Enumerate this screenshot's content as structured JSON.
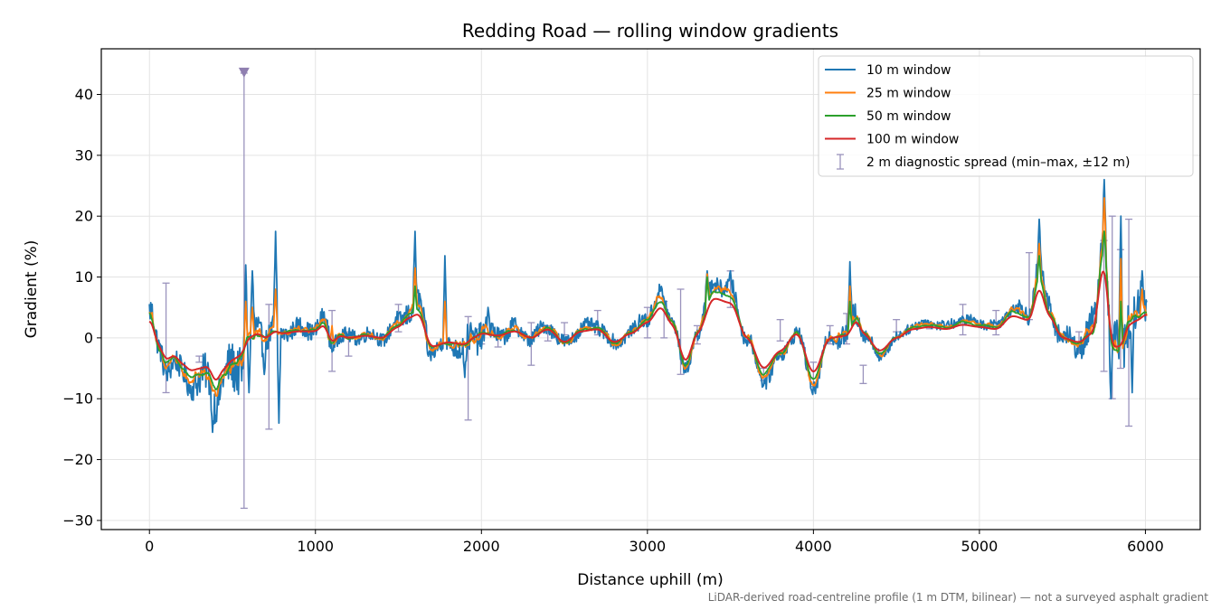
{
  "chart_data": {
    "type": "line",
    "title": "Redding Road — rolling window gradients",
    "xlabel": "Distance uphill (m)",
    "ylabel": "Gradient (%)",
    "footnote": "LiDAR-derived road-centreline profile (1 m DTM, bilinear) — not a surveyed asphalt gradient",
    "xlim": [
      -290,
      6330
    ],
    "ylim": [
      -31.5,
      47.5
    ],
    "x_ticks": [
      0,
      1000,
      2000,
      3000,
      4000,
      5000,
      6000
    ],
    "x_tick_labels": [
      "0",
      "1000",
      "2000",
      "3000",
      "4000",
      "5000",
      "6000"
    ],
    "y_ticks": [
      -30,
      -20,
      -10,
      0,
      10,
      20,
      30,
      40
    ],
    "y_tick_labels": [
      "−30",
      "−20",
      "−10",
      "0",
      "10",
      "20",
      "30",
      "40"
    ],
    "grid": true,
    "legend_position": "top-right",
    "series": [
      {
        "name": "10 m window",
        "color": "#1f77b4",
        "window": 10,
        "scale": 1.0,
        "x": [
          0,
          60,
          100,
          150,
          200,
          250,
          300,
          350,
          400,
          450,
          500,
          550,
          600,
          650,
          700,
          760,
          800,
          900,
          1000,
          1050,
          1100,
          1150,
          1200,
          1300,
          1400,
          1500,
          1560,
          1620,
          1700,
          1800,
          1900,
          1950,
          2000,
          2100,
          2200,
          2300,
          2400,
          2500,
          2600,
          2700,
          2800,
          2900,
          3000,
          3080,
          3150,
          3230,
          3300,
          3400,
          3500,
          3600,
          3700,
          3800,
          3900,
          4000,
          4100,
          4200,
          4260,
          4300,
          4400,
          4500,
          4600,
          4700,
          4800,
          4900,
          5000,
          5100,
          5200,
          5300,
          5360,
          5420,
          5500,
          5600,
          5680,
          5750,
          5800,
          5850,
          5900,
          5950,
          6010
        ],
        "values": [
          4.5,
          -2,
          -5,
          -4,
          -6,
          -7.5,
          -7,
          -6.5,
          -10,
          -7,
          -5,
          -4,
          0,
          1,
          0,
          1.5,
          1,
          1.5,
          1.5,
          3,
          -1,
          0.5,
          0,
          0.5,
          0,
          2.5,
          4.5,
          5.5,
          -2,
          -1,
          -1.5,
          0,
          1,
          0.5,
          1.5,
          0,
          2,
          -1,
          1.5,
          2,
          -1,
          1,
          3.5,
          7,
          3,
          -5.5,
          1,
          9,
          8,
          0,
          -7,
          -3,
          1,
          -8,
          0,
          0.5,
          4,
          1,
          -3,
          0,
          2,
          2.5,
          2,
          3,
          2.5,
          2,
          5,
          4,
          11.5,
          5,
          0,
          -1,
          1,
          17,
          -2,
          -2,
          3,
          4,
          5.5
        ],
        "noise": [
          2.5,
          2,
          2,
          2,
          2,
          2,
          3,
          3,
          3,
          3,
          4,
          4,
          3.5,
          3.5,
          2,
          2,
          1.5,
          1.5,
          1.5,
          1.5,
          1.5,
          1.2,
          1.2,
          1.2,
          1.2,
          1.5,
          2,
          2,
          1.5,
          1.2,
          2.5,
          2.5,
          2.5,
          1.5,
          1.5,
          1.2,
          1.2,
          1.2,
          1.2,
          1.2,
          1.2,
          1,
          1.5,
          1.5,
          1.2,
          1.2,
          1.2,
          1.5,
          1.5,
          1.2,
          1.2,
          1.2,
          1.2,
          1.2,
          1.2,
          2,
          2,
          1.2,
          1,
          0.8,
          0.8,
          0.8,
          0.8,
          0.8,
          0.8,
          0.8,
          1,
          1.5,
          2,
          2,
          1.5,
          2,
          3,
          3,
          4,
          4,
          4,
          3,
          3
        ],
        "spikes": [
          [
            380,
            -15.5
          ],
          [
            580,
            12
          ],
          [
            600,
            -9
          ],
          [
            620,
            11
          ],
          [
            690,
            -6
          ],
          [
            760,
            17.5
          ],
          [
            780,
            -14
          ],
          [
            1600,
            17.5
          ],
          [
            1680,
            -3
          ],
          [
            1780,
            13.5
          ],
          [
            1900,
            -6.5
          ],
          [
            2040,
            5
          ],
          [
            3360,
            11
          ],
          [
            3500,
            11
          ],
          [
            4220,
            12.5
          ],
          [
            5360,
            19.5
          ],
          [
            5750,
            26
          ],
          [
            5790,
            -10
          ],
          [
            5850,
            20
          ],
          [
            5920,
            -9
          ],
          [
            5980,
            11
          ]
        ]
      },
      {
        "name": "25 m window",
        "color": "#ff7f0e",
        "window": 25,
        "scale": 0.92,
        "x": [
          0,
          60,
          100,
          150,
          200,
          250,
          300,
          350,
          400,
          450,
          500,
          550,
          600,
          650,
          700,
          760,
          800,
          900,
          1000,
          1050,
          1100,
          1150,
          1200,
          1300,
          1400,
          1500,
          1560,
          1620,
          1700,
          1800,
          1900,
          1950,
          2000,
          2100,
          2200,
          2300,
          2400,
          2500,
          2600,
          2700,
          2800,
          2900,
          3000,
          3080,
          3150,
          3230,
          3300,
          3400,
          3500,
          3600,
          3700,
          3800,
          3900,
          4000,
          4100,
          4200,
          4260,
          4300,
          4400,
          4500,
          4600,
          4700,
          4800,
          4900,
          5000,
          5100,
          5200,
          5300,
          5360,
          5420,
          5500,
          5600,
          5680,
          5750,
          5800,
          5850,
          5900,
          5950,
          6010
        ],
        "values": [
          4.5,
          -2,
          -5,
          -4,
          -6,
          -7.5,
          -7,
          -6.5,
          -10,
          -7,
          -5,
          -4,
          0,
          1,
          0,
          1.5,
          1,
          1.5,
          1.5,
          3,
          -1,
          0.5,
          0,
          0.5,
          0,
          2.5,
          4.5,
          5.5,
          -2,
          -1,
          -1.5,
          0,
          1,
          0.5,
          1.5,
          0,
          2,
          -1,
          1.5,
          2,
          -1,
          1,
          3.5,
          7,
          3,
          -5.5,
          1,
          9,
          8,
          0,
          -7,
          -3,
          1,
          -8,
          0,
          0.5,
          4,
          1,
          -3,
          0,
          2,
          2.5,
          2,
          3,
          2.5,
          2,
          5,
          4,
          11.5,
          5,
          0,
          -1,
          1,
          17,
          -2,
          -2,
          3,
          4,
          5.5
        ],
        "noise": [
          1.2,
          1,
          1,
          1,
          1,
          1,
          1.5,
          1.5,
          1.5,
          1.5,
          2,
          2,
          1.8,
          1.8,
          1,
          1,
          0.8,
          0.8,
          0.8,
          0.8,
          0.8,
          0.6,
          0.6,
          0.6,
          0.6,
          0.8,
          1,
          1,
          0.8,
          0.6,
          1.2,
          1.2,
          1.2,
          0.8,
          0.8,
          0.6,
          0.6,
          0.6,
          0.6,
          0.6,
          0.6,
          0.5,
          0.8,
          0.8,
          0.6,
          0.6,
          0.6,
          0.8,
          0.8,
          0.6,
          0.6,
          0.6,
          0.6,
          0.6,
          0.6,
          1,
          1,
          0.6,
          0.5,
          0.4,
          0.4,
          0.4,
          0.4,
          0.4,
          0.4,
          0.4,
          0.5,
          0.8,
          1,
          1,
          0.8,
          1,
          1.5,
          1.5,
          2,
          2,
          2,
          1.5,
          1.5
        ],
        "spikes": [
          [
            580,
            6
          ],
          [
            620,
            5
          ],
          [
            760,
            8
          ],
          [
            1100,
            2
          ],
          [
            1600,
            11.5
          ],
          [
            1780,
            6
          ],
          [
            3360,
            10.5
          ],
          [
            4220,
            8.5
          ],
          [
            5360,
            15.5
          ],
          [
            5750,
            23
          ],
          [
            5850,
            13
          ],
          [
            5980,
            8
          ]
        ]
      },
      {
        "name": "50 m window",
        "color": "#2ca02c",
        "window": 50,
        "scale": 0.85,
        "x": [
          0,
          60,
          100,
          150,
          200,
          250,
          300,
          350,
          400,
          450,
          500,
          550,
          600,
          650,
          700,
          760,
          800,
          900,
          1000,
          1050,
          1100,
          1150,
          1200,
          1300,
          1400,
          1500,
          1560,
          1620,
          1700,
          1800,
          1900,
          1950,
          2000,
          2100,
          2200,
          2300,
          2400,
          2500,
          2600,
          2700,
          2800,
          2900,
          3000,
          3080,
          3150,
          3230,
          3300,
          3400,
          3500,
          3600,
          3700,
          3800,
          3900,
          4000,
          4100,
          4200,
          4260,
          4300,
          4400,
          4500,
          4600,
          4700,
          4800,
          4900,
          5000,
          5100,
          5200,
          5300,
          5360,
          5420,
          5500,
          5600,
          5680,
          5750,
          5800,
          5850,
          5900,
          5950,
          6010
        ],
        "values": [
          4.5,
          -2,
          -5,
          -4,
          -6,
          -7.5,
          -7,
          -6.5,
          -10,
          -7,
          -5,
          -4,
          0,
          1,
          0,
          1.5,
          1,
          1.5,
          1.5,
          3,
          -1,
          0.5,
          0,
          0.5,
          0,
          2.5,
          4.5,
          5.5,
          -2,
          -1,
          -1.5,
          0,
          1,
          0.5,
          1.5,
          0,
          2,
          -1,
          1.5,
          2,
          -1,
          1,
          3.5,
          7,
          3,
          -5.5,
          1,
          9,
          8,
          0,
          -7,
          -3,
          1,
          -8,
          0,
          0.5,
          4,
          1,
          -3,
          0,
          2,
          2.5,
          2,
          3,
          2.5,
          2,
          5,
          4,
          11.5,
          5,
          0,
          -1,
          1,
          17,
          -2,
          -2,
          3,
          4,
          5.5
        ],
        "noise": [
          0.5,
          0.4,
          0.4,
          0.4,
          0.4,
          0.4,
          0.6,
          0.6,
          0.6,
          0.6,
          0.8,
          0.8,
          0.7,
          0.7,
          0.4,
          0.4,
          0.3,
          0.3,
          0.3,
          0.3,
          0.3,
          0.3,
          0.3,
          0.3,
          0.3,
          0.3,
          0.4,
          0.4,
          0.3,
          0.3,
          0.5,
          0.5,
          0.5,
          0.3,
          0.3,
          0.3,
          0.3,
          0.3,
          0.3,
          0.3,
          0.3,
          0.2,
          0.3,
          0.3,
          0.3,
          0.3,
          0.3,
          0.3,
          0.3,
          0.3,
          0.3,
          0.3,
          0.3,
          0.3,
          0.3,
          0.4,
          0.4,
          0.3,
          0.2,
          0.2,
          0.2,
          0.2,
          0.2,
          0.2,
          0.2,
          0.2,
          0.2,
          0.3,
          0.4,
          0.4,
          0.3,
          0.4,
          0.6,
          0.6,
          0.8,
          0.8,
          0.8,
          0.6,
          0.6
        ],
        "spikes": [
          [
            1600,
            8.5
          ],
          [
            3360,
            10
          ],
          [
            4220,
            6
          ],
          [
            5360,
            13.5
          ],
          [
            5750,
            17.5
          ],
          [
            5850,
            6
          ]
        ]
      },
      {
        "name": "100 m window",
        "color": "#d62728",
        "window": 100,
        "scale": 0.72,
        "x": [
          0,
          60,
          100,
          150,
          200,
          250,
          300,
          350,
          400,
          450,
          500,
          550,
          600,
          650,
          700,
          760,
          800,
          900,
          1000,
          1050,
          1100,
          1150,
          1200,
          1300,
          1400,
          1500,
          1560,
          1620,
          1700,
          1800,
          1900,
          1950,
          2000,
          2100,
          2200,
          2300,
          2400,
          2500,
          2600,
          2700,
          2800,
          2900,
          3000,
          3080,
          3150,
          3230,
          3300,
          3400,
          3500,
          3600,
          3700,
          3800,
          3900,
          4000,
          4100,
          4200,
          4260,
          4300,
          4400,
          4500,
          4600,
          4700,
          4800,
          4900,
          5000,
          5100,
          5200,
          5300,
          5360,
          5420,
          5500,
          5600,
          5680,
          5750,
          5800,
          5850,
          5900,
          5950,
          6010
        ],
        "values": [
          4.5,
          -2,
          -5,
          -4,
          -6,
          -7.5,
          -7,
          -6.5,
          -10,
          -7,
          -5,
          -4,
          0,
          1,
          0,
          1.5,
          1,
          1.5,
          1.5,
          3,
          -1,
          0.5,
          0,
          0.5,
          0,
          2.5,
          4.5,
          5.5,
          -2,
          -1,
          -1.5,
          0,
          1,
          0.5,
          1.5,
          0,
          2,
          -1,
          1.5,
          2,
          -1,
          1,
          3.5,
          7,
          3,
          -5.5,
          1,
          9,
          8,
          0,
          -7,
          -3,
          1,
          -8,
          0,
          0.5,
          4,
          1,
          -3,
          0,
          2,
          2.5,
          2,
          3,
          2.5,
          2,
          5,
          4,
          11.5,
          5,
          0,
          -1,
          1,
          17,
          -2,
          -2,
          3,
          4,
          5.5
        ],
        "noise": [
          0,
          0,
          0,
          0,
          0,
          0,
          0,
          0,
          0,
          0,
          0,
          0,
          0,
          0,
          0,
          0,
          0,
          0,
          0,
          0,
          0,
          0,
          0,
          0,
          0,
          0,
          0,
          0,
          0,
          0,
          0,
          0,
          0,
          0,
          0,
          0,
          0,
          0,
          0,
          0,
          0,
          0,
          0,
          0,
          0,
          0,
          0,
          0,
          0,
          0,
          0,
          0,
          0,
          0,
          0,
          0,
          0,
          0,
          0,
          0,
          0,
          0,
          0,
          0,
          0,
          0,
          0,
          0,
          0,
          0,
          0,
          0,
          0,
          0,
          0,
          0,
          0,
          0,
          0
        ],
        "spikes": []
      }
    ],
    "diagnostic_spread": {
      "name": "2 m diagnostic spread (min–max, ±12 m)",
      "color": "#9a93bd",
      "x": [
        100,
        300,
        570,
        720,
        1100,
        1200,
        1500,
        1920,
        2000,
        2100,
        2300,
        2400,
        2500,
        2700,
        3000,
        3100,
        3200,
        3300,
        3500,
        3700,
        3800,
        4000,
        4100,
        4200,
        4300,
        4500,
        4700,
        4900,
        5100,
        5300,
        5600,
        5750,
        5800,
        5850,
        5900
      ],
      "low": [
        -9,
        -4,
        -28,
        -15,
        -5.5,
        -3,
        1,
        -13.5,
        -1,
        -1.5,
        -4.5,
        -0.5,
        0.5,
        0.5,
        0,
        0,
        -6,
        -1,
        5,
        -7,
        -0.5,
        -8,
        -1,
        -1,
        -7.5,
        1,
        1.5,
        0.5,
        0.5,
        3,
        -2.5,
        -5.5,
        -10,
        -5,
        -14.5
      ],
      "high": [
        9,
        -3,
        43.5,
        5.5,
        4.5,
        1,
        5.5,
        3.5,
        1.5,
        0.5,
        2.5,
        2,
        2.5,
        4.5,
        5,
        6,
        8,
        2,
        11,
        -5,
        3,
        -4,
        2,
        4,
        -4.5,
        3,
        2.5,
        5.5,
        4.5,
        14,
        1,
        16,
        20,
        14.5,
        19.5
      ],
      "marker_clipped": {
        "x": 570,
        "y": 43.5,
        "shape": "down-triangle"
      }
    }
  }
}
